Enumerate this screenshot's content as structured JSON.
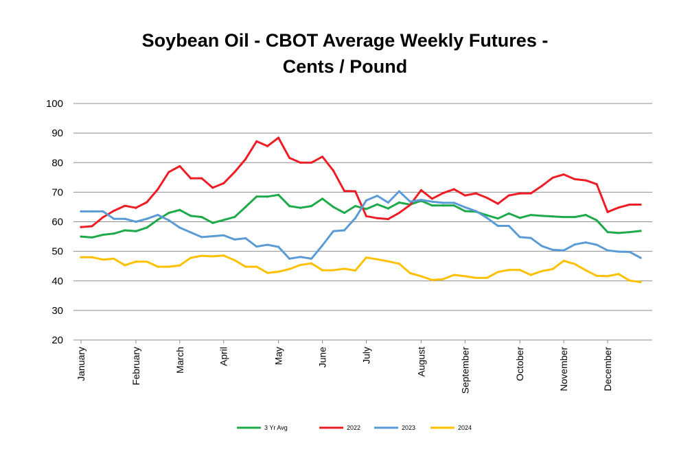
{
  "chart_data": {
    "type": "line",
    "title_line1": "Soybean Oil - CBOT Average Weekly Futures -",
    "title_line2": "Cents / Pound",
    "xlabel": "",
    "ylabel": "",
    "ylim": [
      20,
      100
    ],
    "y_ticks": [
      "20",
      "30",
      "40",
      "50",
      "60",
      "70",
      "80",
      "90",
      "100"
    ],
    "grid": true,
    "legend_position": "bottom",
    "months": [
      "January",
      "February",
      "March",
      "April",
      "May",
      "June",
      "July",
      "August",
      "September",
      "October",
      "November",
      "December"
    ],
    "month_week_index": [
      0,
      5,
      9,
      13,
      18,
      22,
      26,
      31,
      35,
      40,
      44,
      48
    ],
    "weeks": 52,
    "series": [
      {
        "name": "3 Yr Avg",
        "color": "#1EAA4A",
        "values": [
          55.0,
          54.7,
          55.6,
          56.0,
          57.1,
          56.8,
          58.0,
          60.7,
          63.0,
          64.0,
          62.0,
          61.6,
          59.6,
          60.6,
          61.6,
          65.0,
          68.5,
          68.5,
          69.1,
          65.3,
          64.7,
          65.3,
          67.8,
          65.0,
          63.0,
          65.3,
          64.3,
          65.9,
          64.5,
          66.5,
          65.8,
          67.1,
          65.5,
          65.5,
          65.5,
          63.6,
          63.4,
          62.2,
          61.1,
          62.8,
          61.3,
          62.3,
          62.0,
          61.8,
          61.6,
          61.6,
          62.3,
          60.5,
          56.5,
          56.2,
          56.5,
          56.9
        ]
      },
      {
        "name": "2022",
        "color": "#EE1C25",
        "values": [
          58.2,
          58.5,
          61.5,
          63.7,
          65.4,
          64.7,
          66.6,
          71.0,
          76.8,
          78.8,
          74.7,
          74.7,
          71.5,
          73.0,
          76.8,
          81.2,
          87.2,
          85.6,
          88.4,
          81.6,
          80.0,
          80.0,
          82.0,
          77.3,
          70.4,
          70.3,
          61.9,
          61.2,
          60.9,
          63.0,
          65.7,
          70.7,
          67.8,
          69.7,
          71.0,
          68.9,
          69.6,
          68.1,
          66.1,
          68.9,
          69.6,
          69.6,
          72.1,
          74.9,
          76.0,
          74.4,
          74.0,
          72.7,
          63.3,
          64.8,
          65.8,
          65.8
        ]
      },
      {
        "name": "2023",
        "color": "#5B9BD5",
        "values": [
          63.5,
          63.5,
          63.5,
          61.0,
          61.0,
          60.0,
          61.0,
          62.3,
          60.5,
          58.0,
          56.4,
          54.8,
          55.1,
          55.4,
          54.0,
          54.4,
          51.6,
          52.2,
          51.5,
          47.5,
          48.1,
          47.5,
          52.0,
          56.8,
          57.1,
          61.2,
          67.2,
          68.8,
          66.5,
          70.3,
          66.8,
          67.4,
          66.8,
          66.4,
          66.4,
          64.9,
          63.6,
          61.3,
          58.6,
          58.6,
          54.8,
          54.5,
          51.8,
          50.5,
          50.3,
          52.3,
          53.0,
          52.2,
          50.3,
          49.9,
          49.8,
          47.8
        ]
      },
      {
        "name": "2024",
        "color": "#FFC000",
        "values": [
          48.0,
          48.0,
          47.2,
          47.5,
          45.3,
          46.5,
          46.5,
          44.8,
          44.8,
          45.2,
          47.8,
          48.5,
          48.3,
          48.6,
          47.0,
          44.8,
          44.8,
          42.7,
          43.1,
          44.0,
          45.4,
          45.9,
          43.6,
          43.6,
          44.1,
          43.5,
          47.9,
          47.3,
          46.6,
          45.8,
          42.6,
          41.6,
          40.3,
          40.6,
          42.0,
          41.6,
          41.0,
          41.0,
          43.0,
          43.7,
          43.7,
          42.0,
          43.3,
          44.0,
          46.8,
          45.7,
          43.6,
          41.7,
          41.6,
          42.3,
          40.1,
          39.6
        ]
      }
    ]
  }
}
